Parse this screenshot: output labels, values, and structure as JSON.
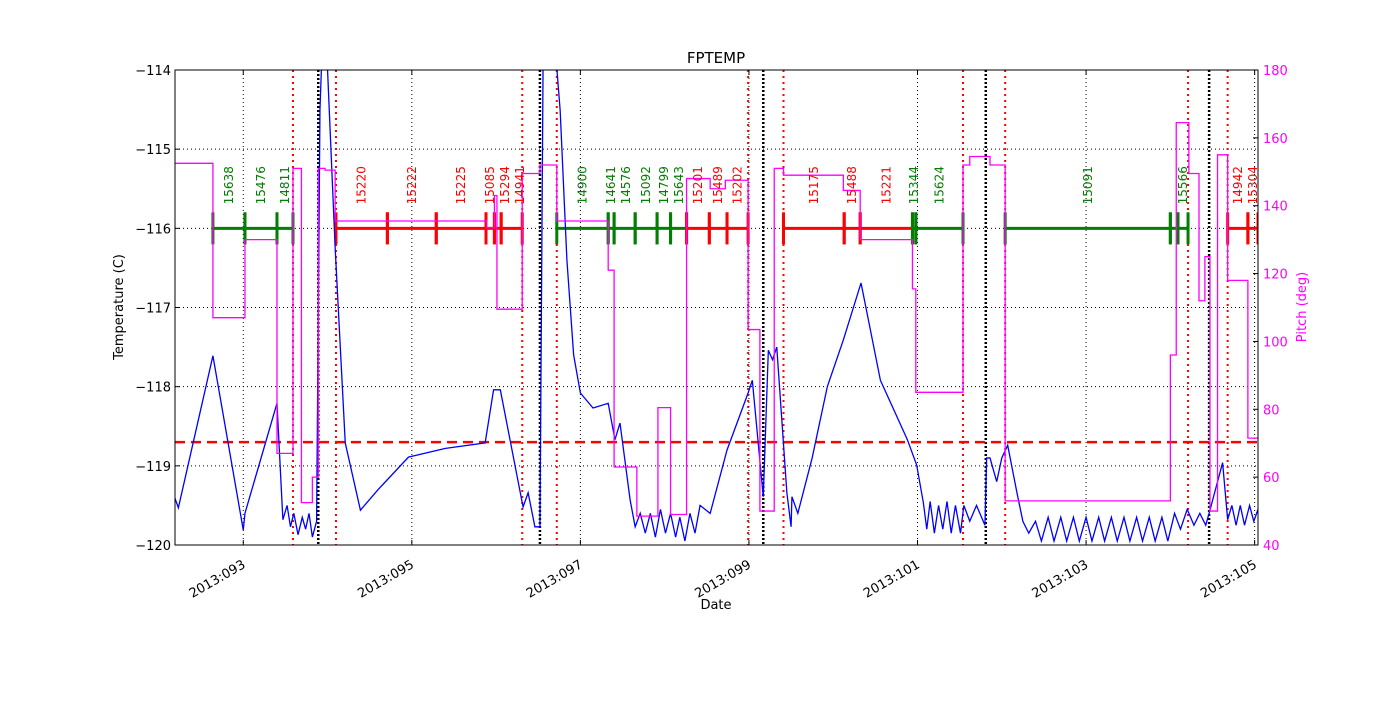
{
  "chart_data": {
    "type": "line",
    "title": "FPTEMP",
    "xlabel": "Date",
    "ylabel": "Temperature (C)",
    "y2label": "Pitch (deg)",
    "xlim": [
      92.19,
      105.04
    ],
    "ylim": [
      -120,
      -114
    ],
    "y2lim": [
      40,
      180
    ],
    "grid": true,
    "x_ticks": [
      {
        "value": 93,
        "label": "2013:093"
      },
      {
        "value": 95,
        "label": "2013:095"
      },
      {
        "value": 97,
        "label": "2013:097"
      },
      {
        "value": 99,
        "label": "2013:099"
      },
      {
        "value": 101,
        "label": "2013:101"
      },
      {
        "value": 103,
        "label": "2013:103"
      },
      {
        "value": 105,
        "label": "2013:105"
      }
    ],
    "y_ticks": [
      -120,
      -119,
      -118,
      -117,
      -116,
      -115,
      -114
    ],
    "y2_ticks": [
      40,
      60,
      80,
      100,
      120,
      140,
      160,
      180
    ],
    "colors": {
      "temperature": "#0000ff",
      "pitch": "#ff00ff",
      "limit": "#ff0000",
      "obsid_green": "#007f00",
      "obsid_red": "#ff0000",
      "dotted_red": "#ff0000",
      "dotted_black": "#000000"
    },
    "limit_line": -118.7,
    "obsid_level": -116,
    "red_dotted_lines": [
      93.59,
      94.1,
      96.31,
      96.72,
      98.99,
      99.41,
      101.54,
      102.04,
      104.21,
      104.68
    ],
    "black_dotted_lines": [
      93.89,
      96.52,
      99.17,
      101.81,
      104.46
    ],
    "obsids": [
      {
        "label": "15638",
        "start": 92.64,
        "end": 93.02,
        "color": "green"
      },
      {
        "label": "15476",
        "start": 93.02,
        "end": 93.4,
        "color": "green"
      },
      {
        "label": "14811",
        "start": 93.4,
        "end": 93.59,
        "color": "green"
      },
      {
        "label": "15220",
        "start": 94.1,
        "end": 94.71,
        "color": "red"
      },
      {
        "label": "15222",
        "start": 94.71,
        "end": 95.29,
        "color": "red"
      },
      {
        "label": "15225",
        "start": 95.29,
        "end": 95.88,
        "color": "red"
      },
      {
        "label": "15085",
        "start": 95.88,
        "end": 95.98,
        "color": "red"
      },
      {
        "label": "15294",
        "start": 95.98,
        "end": 96.06,
        "color": "red"
      },
      {
        "label": "14941",
        "start": 96.06,
        "end": 96.31,
        "color": "red"
      },
      {
        "label": "14900",
        "start": 96.72,
        "end": 97.33,
        "color": "green"
      },
      {
        "label": "14641",
        "start": 97.33,
        "end": 97.4,
        "color": "green"
      },
      {
        "label": "14576",
        "start": 97.4,
        "end": 97.65,
        "color": "green"
      },
      {
        "label": "15092",
        "start": 97.65,
        "end": 97.91,
        "color": "green"
      },
      {
        "label": "14799",
        "start": 97.91,
        "end": 98.07,
        "color": "green"
      },
      {
        "label": "15643",
        "start": 98.07,
        "end": 98.26,
        "color": "green"
      },
      {
        "label": "15201",
        "start": 98.26,
        "end": 98.53,
        "color": "red"
      },
      {
        "label": "15489",
        "start": 98.53,
        "end": 98.74,
        "color": "red"
      },
      {
        "label": "15202",
        "start": 98.74,
        "end": 98.99,
        "color": "red"
      },
      {
        "label": "15175",
        "start": 99.41,
        "end": 100.13,
        "color": "red"
      },
      {
        "label": "15488",
        "start": 100.13,
        "end": 100.32,
        "color": "red"
      },
      {
        "label": "15221",
        "start": 100.32,
        "end": 100.94,
        "color": "red"
      },
      {
        "label": "15344",
        "start": 100.94,
        "end": 100.98,
        "color": "green"
      },
      {
        "label": "15624",
        "start": 100.98,
        "end": 101.54,
        "color": "green"
      },
      {
        "label": "15091",
        "start": 102.04,
        "end": 104.0,
        "color": "green"
      },
      {
        "label": "",
        "start": 104.0,
        "end": 104.09,
        "color": "green"
      },
      {
        "label": "15566",
        "start": 104.09,
        "end": 104.21,
        "color": "green"
      },
      {
        "label": "14942",
        "start": 104.68,
        "end": 104.92,
        "color": "red"
      },
      {
        "label": "15304",
        "start": 104.92,
        "end": 105.04,
        "color": "red"
      }
    ],
    "series": [
      {
        "axis": "left",
        "color": "#0000ff",
        "points": [
          [
            92.19,
            -119.41
          ],
          [
            92.23,
            -119.53
          ],
          [
            92.64,
            -117.61
          ],
          [
            93.0,
            -119.81
          ],
          [
            93.02,
            -119.6
          ],
          [
            93.4,
            -118.21
          ],
          [
            93.47,
            -119.68
          ],
          [
            93.52,
            -119.5
          ],
          [
            93.56,
            -119.77
          ],
          [
            93.6,
            -119.6
          ],
          [
            93.65,
            -119.87
          ],
          [
            93.7,
            -119.65
          ],
          [
            93.74,
            -119.8
          ],
          [
            93.78,
            -119.6
          ],
          [
            93.82,
            -119.9
          ],
          [
            93.87,
            -119.7
          ],
          [
            93.91,
            -114.5
          ],
          [
            93.95,
            -113.3
          ],
          [
            93.98,
            -113.5
          ],
          [
            94.09,
            -116.24
          ],
          [
            94.21,
            -118.71
          ],
          [
            94.39,
            -119.56
          ],
          [
            94.6,
            -119.3
          ],
          [
            94.96,
            -118.89
          ],
          [
            95.4,
            -118.78
          ],
          [
            95.87,
            -118.71
          ],
          [
            95.97,
            -118.04
          ],
          [
            96.05,
            -118.04
          ],
          [
            96.32,
            -119.52
          ],
          [
            96.38,
            -119.34
          ],
          [
            96.46,
            -119.77
          ],
          [
            96.52,
            -119.77
          ],
          [
            96.56,
            -113.5
          ],
          [
            96.67,
            -113.3
          ],
          [
            96.76,
            -114.51
          ],
          [
            96.84,
            -116.4
          ],
          [
            96.92,
            -117.6
          ],
          [
            97.0,
            -118.08
          ],
          [
            97.15,
            -118.27
          ],
          [
            97.33,
            -118.21
          ],
          [
            97.41,
            -118.67
          ],
          [
            97.47,
            -118.46
          ],
          [
            97.59,
            -119.43
          ],
          [
            97.65,
            -119.77
          ],
          [
            97.71,
            -119.6
          ],
          [
            97.77,
            -119.85
          ],
          [
            97.83,
            -119.6
          ],
          [
            97.89,
            -119.9
          ],
          [
            97.95,
            -119.55
          ],
          [
            98.01,
            -119.85
          ],
          [
            98.07,
            -119.6
          ],
          [
            98.13,
            -119.9
          ],
          [
            98.18,
            -119.65
          ],
          [
            98.24,
            -119.95
          ],
          [
            98.3,
            -119.6
          ],
          [
            98.36,
            -119.85
          ],
          [
            98.42,
            -119.5
          ],
          [
            98.54,
            -119.6
          ],
          [
            98.74,
            -118.8
          ],
          [
            98.99,
            -118.08
          ],
          [
            99.04,
            -117.92
          ],
          [
            99.17,
            -119.39
          ],
          [
            99.23,
            -117.54
          ],
          [
            99.28,
            -117.66
          ],
          [
            99.33,
            -117.5
          ],
          [
            99.45,
            -119.34
          ],
          [
            99.5,
            -119.77
          ],
          [
            99.51,
            -119.39
          ],
          [
            99.58,
            -119.6
          ],
          [
            99.75,
            -118.9
          ],
          [
            99.93,
            -118.0
          ],
          [
            100.12,
            -117.41
          ],
          [
            100.33,
            -116.69
          ],
          [
            100.56,
            -117.92
          ],
          [
            100.88,
            -118.67
          ],
          [
            100.99,
            -118.99
          ],
          [
            101.07,
            -119.47
          ],
          [
            101.11,
            -119.8
          ],
          [
            101.15,
            -119.45
          ],
          [
            101.2,
            -119.85
          ],
          [
            101.25,
            -119.5
          ],
          [
            101.3,
            -119.8
          ],
          [
            101.35,
            -119.45
          ],
          [
            101.4,
            -119.85
          ],
          [
            101.45,
            -119.5
          ],
          [
            101.51,
            -119.85
          ],
          [
            101.55,
            -119.5
          ],
          [
            101.62,
            -119.7
          ],
          [
            101.7,
            -119.5
          ],
          [
            101.8,
            -119.75
          ],
          [
            101.82,
            -118.9
          ],
          [
            101.86,
            -118.9
          ],
          [
            101.94,
            -119.2
          ],
          [
            102.0,
            -118.9
          ],
          [
            102.07,
            -118.74
          ],
          [
            102.18,
            -119.34
          ],
          [
            102.25,
            -119.7
          ],
          [
            102.32,
            -119.85
          ],
          [
            102.4,
            -119.7
          ],
          [
            102.47,
            -119.95
          ],
          [
            102.55,
            -119.65
          ],
          [
            102.62,
            -119.95
          ],
          [
            102.7,
            -119.65
          ],
          [
            102.77,
            -119.95
          ],
          [
            102.85,
            -119.65
          ],
          [
            102.92,
            -119.95
          ],
          [
            103.0,
            -119.65
          ],
          [
            103.07,
            -119.95
          ],
          [
            103.15,
            -119.65
          ],
          [
            103.22,
            -119.95
          ],
          [
            103.3,
            -119.65
          ],
          [
            103.37,
            -119.95
          ],
          [
            103.45,
            -119.65
          ],
          [
            103.52,
            -119.95
          ],
          [
            103.6,
            -119.65
          ],
          [
            103.67,
            -119.95
          ],
          [
            103.75,
            -119.65
          ],
          [
            103.82,
            -119.95
          ],
          [
            103.9,
            -119.65
          ],
          [
            103.97,
            -119.95
          ],
          [
            104.05,
            -119.6
          ],
          [
            104.12,
            -119.8
          ],
          [
            104.2,
            -119.55
          ],
          [
            104.28,
            -119.75
          ],
          [
            104.35,
            -119.6
          ],
          [
            104.42,
            -119.75
          ],
          [
            104.47,
            -119.56
          ],
          [
            104.62,
            -118.96
          ],
          [
            104.68,
            -119.68
          ],
          [
            104.73,
            -119.5
          ],
          [
            104.78,
            -119.75
          ],
          [
            104.83,
            -119.5
          ],
          [
            104.88,
            -119.75
          ],
          [
            104.94,
            -119.5
          ],
          [
            104.99,
            -119.7
          ],
          [
            105.04,
            -119.55
          ]
        ]
      },
      {
        "axis": "right",
        "color": "#ff00ff",
        "step": true,
        "points": [
          [
            92.19,
            152.5
          ],
          [
            92.64,
            107
          ],
          [
            93.02,
            130
          ],
          [
            93.4,
            67
          ],
          [
            93.59,
            151
          ],
          [
            93.69,
            52.5
          ],
          [
            93.82,
            60
          ],
          [
            93.89,
            151
          ],
          [
            93.97,
            150.5
          ],
          [
            94.09,
            135.5
          ],
          [
            95.89,
            133.5
          ],
          [
            95.98,
            143
          ],
          [
            96.01,
            109.5
          ],
          [
            96.31,
            149.5
          ],
          [
            96.52,
            152
          ],
          [
            96.72,
            135.5
          ],
          [
            97.33,
            121
          ],
          [
            97.4,
            63
          ],
          [
            97.67,
            48.5
          ],
          [
            97.92,
            80.5
          ],
          [
            98.07,
            49
          ],
          [
            98.26,
            148
          ],
          [
            98.54,
            145
          ],
          [
            98.72,
            147.5
          ],
          [
            98.99,
            103.5
          ],
          [
            99.13,
            50
          ],
          [
            99.3,
            151
          ],
          [
            99.41,
            149
          ],
          [
            100.12,
            144.5
          ],
          [
            100.32,
            130
          ],
          [
            100.94,
            115.5
          ],
          [
            100.98,
            85
          ],
          [
            101.54,
            152
          ],
          [
            101.62,
            154.5
          ],
          [
            101.86,
            152
          ],
          [
            102.04,
            53
          ],
          [
            104.0,
            96
          ],
          [
            104.07,
            164.5
          ],
          [
            104.22,
            149.5
          ],
          [
            104.34,
            112
          ],
          [
            104.41,
            125
          ],
          [
            104.47,
            50
          ],
          [
            104.56,
            155
          ],
          [
            104.68,
            118
          ],
          [
            104.92,
            71.5
          ],
          [
            105.04,
            71.5
          ]
        ]
      }
    ]
  }
}
